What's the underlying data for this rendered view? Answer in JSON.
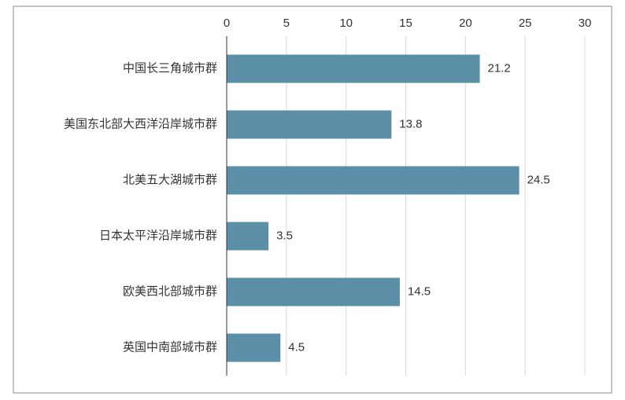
{
  "chart_data": {
    "type": "bar",
    "orientation": "horizontal",
    "categories": [
      "中国长三角城市群",
      "美国东北部大西洋沿岸城市群",
      "北美五大湖城市群",
      "日本太平洋沿岸城市群",
      "欧美西北部城市群",
      "英国中南部城市群"
    ],
    "values": [
      21.2,
      13.8,
      24.5,
      3.5,
      14.5,
      4.5
    ],
    "color": "#5b8fa7",
    "xlim": [
      0,
      30
    ],
    "xticks": [
      0,
      5,
      10,
      15,
      20,
      25,
      30
    ],
    "grid": true
  }
}
